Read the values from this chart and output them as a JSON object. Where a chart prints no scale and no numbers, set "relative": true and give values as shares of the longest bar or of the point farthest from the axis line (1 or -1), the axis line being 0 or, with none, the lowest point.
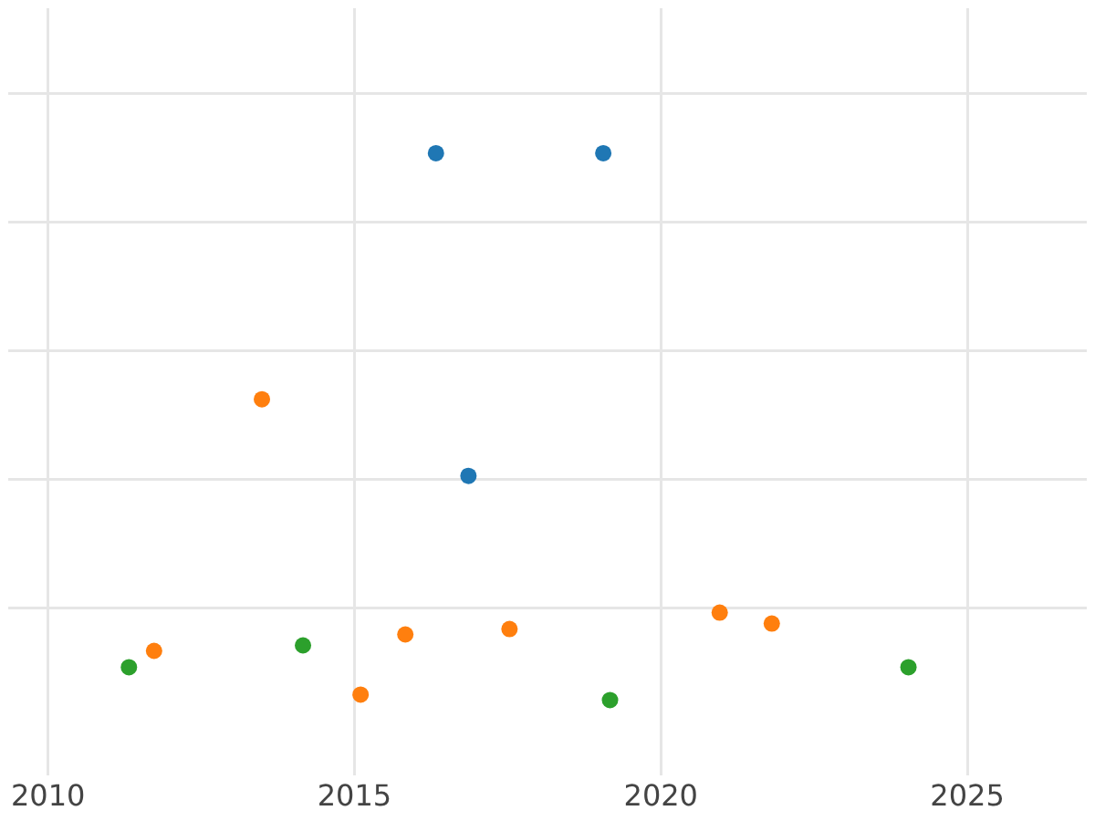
{
  "chart_data": {
    "type": "scatter",
    "relative": true,
    "marker": "circle",
    "grid": true,
    "legend": false,
    "tick_labels": "x",
    "xlim": [
      2009.35,
      2026.95
    ],
    "xticks": [
      2010,
      2015,
      2020,
      2025
    ],
    "series": [
      {
        "color": "#1f77b4",
        "x": [
          2016.33,
          2019.06,
          2016.86
        ],
        "values": [
          1,
          1,
          0.41
        ]
      },
      {
        "color": "#ff7f0e",
        "x": [
          2011.73,
          2013.49,
          2015.1,
          2015.83,
          2017.53,
          2020.96,
          2021.81
        ],
        "values": [
          0.09,
          0.55,
          0.01,
          0.12,
          0.13,
          0.16,
          0.14
        ]
      },
      {
        "color": "#2ca02c",
        "x": [
          2011.32,
          2014.16,
          2019.17,
          2024.04
        ],
        "values": [
          0.06,
          0.1,
          0,
          0.06
        ]
      }
    ]
  }
}
